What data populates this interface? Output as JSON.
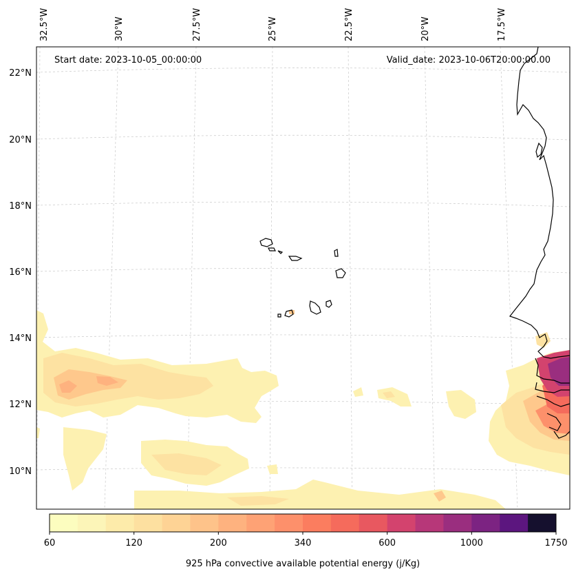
{
  "map": {
    "start_date": "Start date: 2023-10-05_00:00:00",
    "valid_date": "Valid_date: 2023-10-06T20:00:00.00",
    "lon_labels": [
      "32.5°W",
      "30°W",
      "27.5°W",
      "25°W",
      "22.5°W",
      "20°W",
      "17.5°W"
    ],
    "lat_labels": [
      "22°N",
      "20°N",
      "18°N",
      "16°N",
      "14°N",
      "12°N",
      "10°N"
    ]
  },
  "colorbar": {
    "label": "925 hPa convective available potential energy (j/Kg)",
    "tick_labels": [
      "60",
      "120",
      "200",
      "340",
      "600",
      "1000",
      "1750"
    ],
    "colors": [
      "#fcfdbf",
      "#fcf5b8",
      "#fdebaa",
      "#fde0a0",
      "#fed395",
      "#fec38a",
      "#feb27f",
      "#fea275",
      "#fd906b",
      "#fb7d5f",
      "#f56b5c",
      "#e85860",
      "#d3436e",
      "#b73779",
      "#9a2e7f",
      "#7c2382",
      "#5c167f",
      "#15102e"
    ]
  }
}
